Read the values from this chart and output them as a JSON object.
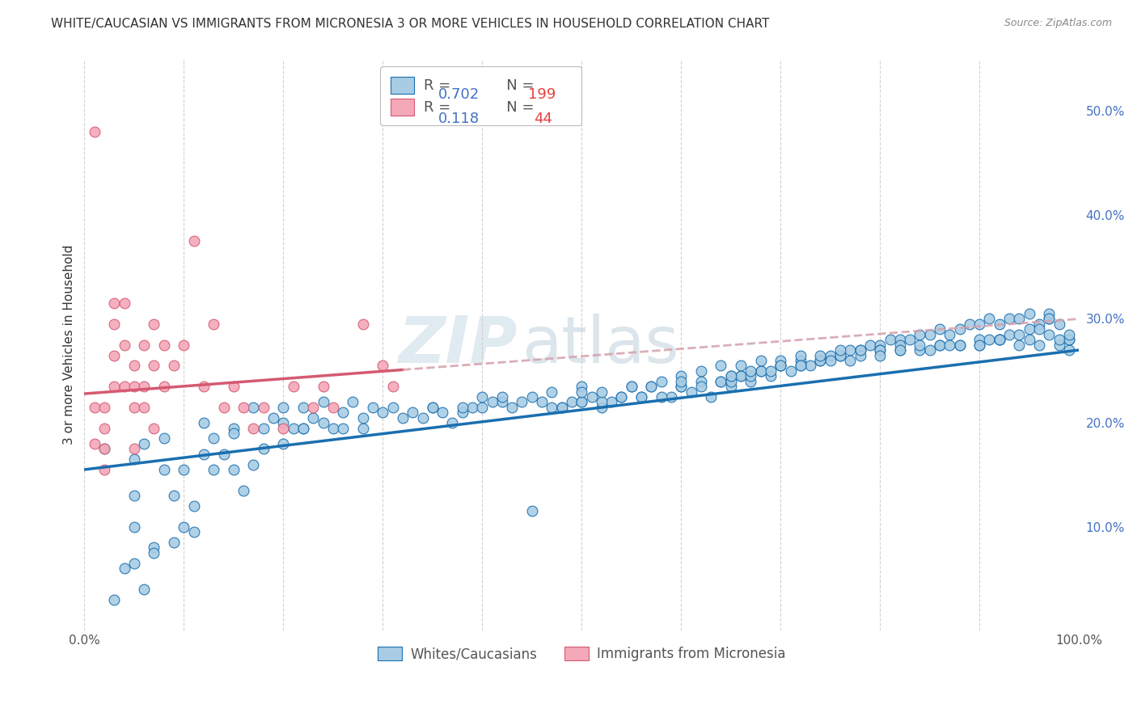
{
  "title": "WHITE/CAUCASIAN VS IMMIGRANTS FROM MICRONESIA 3 OR MORE VEHICLES IN HOUSEHOLD CORRELATION CHART",
  "source": "Source: ZipAtlas.com",
  "ylabel": "3 or more Vehicles in Household",
  "xlim": [
    0,
    1.0
  ],
  "ylim": [
    0,
    0.55
  ],
  "blue_R": 0.702,
  "blue_N": 199,
  "pink_R": 0.118,
  "pink_N": 44,
  "blue_color": "#a8cce4",
  "pink_color": "#f4a8b8",
  "blue_line_color": "#1a6faf",
  "pink_line_color": "#d45a72",
  "pink_dash_color": "#d4a0ac",
  "legend_blue_label": "Whites/Caucasians",
  "legend_pink_label": "Immigrants from Micronesia",
  "blue_intercept": 0.155,
  "blue_slope": 0.115,
  "pink_intercept": 0.228,
  "pink_slope": 0.072,
  "blue_scatter_x": [
    0.02,
    0.03,
    0.04,
    0.05,
    0.05,
    0.05,
    0.06,
    0.06,
    0.07,
    0.08,
    0.08,
    0.09,
    0.1,
    0.1,
    0.11,
    0.12,
    0.12,
    0.13,
    0.14,
    0.15,
    0.15,
    0.16,
    0.17,
    0.17,
    0.18,
    0.19,
    0.2,
    0.2,
    0.21,
    0.22,
    0.22,
    0.23,
    0.24,
    0.25,
    0.26,
    0.27,
    0.28,
    0.29,
    0.3,
    0.31,
    0.32,
    0.33,
    0.34,
    0.35,
    0.36,
    0.37,
    0.38,
    0.39,
    0.4,
    0.41,
    0.42,
    0.43,
    0.44,
    0.45,
    0.46,
    0.47,
    0.48,
    0.49,
    0.5,
    0.5,
    0.51,
    0.52,
    0.53,
    0.54,
    0.55,
    0.56,
    0.57,
    0.58,
    0.59,
    0.6,
    0.61,
    0.62,
    0.63,
    0.64,
    0.65,
    0.65,
    0.66,
    0.67,
    0.68,
    0.69,
    0.7,
    0.71,
    0.72,
    0.73,
    0.74,
    0.75,
    0.76,
    0.77,
    0.78,
    0.79,
    0.8,
    0.81,
    0.82,
    0.83,
    0.84,
    0.85,
    0.86,
    0.87,
    0.88,
    0.89,
    0.9,
    0.91,
    0.92,
    0.93,
    0.94,
    0.95,
    0.96,
    0.97,
    0.97,
    0.98,
    0.99,
    0.99,
    0.13,
    0.15,
    0.18,
    0.2,
    0.22,
    0.24,
    0.26,
    0.28,
    0.48,
    0.5,
    0.52,
    0.54,
    0.56,
    0.58,
    0.6,
    0.62,
    0.64,
    0.65,
    0.66,
    0.67,
    0.68,
    0.69,
    0.7,
    0.72,
    0.74,
    0.76,
    0.78,
    0.8,
    0.82,
    0.84,
    0.86,
    0.88,
    0.9,
    0.92,
    0.94,
    0.96,
    0.98,
    0.05,
    0.07,
    0.09,
    0.11,
    0.6,
    0.62,
    0.64,
    0.66,
    0.68,
    0.7,
    0.72,
    0.74,
    0.76,
    0.78,
    0.8,
    0.82,
    0.84,
    0.86,
    0.88,
    0.9,
    0.91,
    0.92,
    0.93,
    0.94,
    0.95,
    0.96,
    0.97,
    0.98,
    0.99,
    0.65,
    0.67,
    0.7,
    0.72,
    0.75,
    0.77,
    0.8,
    0.82,
    0.85,
    0.87,
    0.9,
    0.92,
    0.95,
    0.97,
    0.99,
    0.35,
    0.38,
    0.4,
    0.42,
    0.45,
    0.47,
    0.5,
    0.52,
    0.55,
    0.57,
    0.6
  ],
  "blue_scatter_y": [
    0.175,
    0.03,
    0.06,
    0.1,
    0.13,
    0.165,
    0.04,
    0.18,
    0.08,
    0.155,
    0.185,
    0.13,
    0.1,
    0.155,
    0.12,
    0.17,
    0.2,
    0.155,
    0.17,
    0.155,
    0.195,
    0.135,
    0.16,
    0.215,
    0.175,
    0.205,
    0.215,
    0.18,
    0.195,
    0.195,
    0.215,
    0.205,
    0.22,
    0.195,
    0.21,
    0.22,
    0.195,
    0.215,
    0.21,
    0.215,
    0.205,
    0.21,
    0.205,
    0.215,
    0.21,
    0.2,
    0.21,
    0.215,
    0.215,
    0.22,
    0.22,
    0.215,
    0.22,
    0.115,
    0.22,
    0.215,
    0.215,
    0.22,
    0.235,
    0.22,
    0.225,
    0.215,
    0.22,
    0.225,
    0.235,
    0.225,
    0.235,
    0.24,
    0.225,
    0.235,
    0.23,
    0.24,
    0.225,
    0.24,
    0.235,
    0.245,
    0.245,
    0.24,
    0.25,
    0.245,
    0.255,
    0.25,
    0.26,
    0.255,
    0.26,
    0.265,
    0.265,
    0.27,
    0.27,
    0.275,
    0.275,
    0.28,
    0.28,
    0.28,
    0.285,
    0.285,
    0.29,
    0.285,
    0.29,
    0.295,
    0.295,
    0.3,
    0.295,
    0.3,
    0.3,
    0.305,
    0.295,
    0.3,
    0.305,
    0.275,
    0.27,
    0.28,
    0.185,
    0.19,
    0.195,
    0.2,
    0.195,
    0.2,
    0.195,
    0.205,
    0.215,
    0.22,
    0.22,
    0.225,
    0.225,
    0.225,
    0.235,
    0.235,
    0.24,
    0.24,
    0.245,
    0.245,
    0.25,
    0.25,
    0.255,
    0.255,
    0.26,
    0.265,
    0.265,
    0.27,
    0.27,
    0.27,
    0.275,
    0.275,
    0.275,
    0.28,
    0.275,
    0.275,
    0.28,
    0.065,
    0.075,
    0.085,
    0.095,
    0.245,
    0.25,
    0.255,
    0.255,
    0.26,
    0.26,
    0.265,
    0.265,
    0.27,
    0.27,
    0.27,
    0.275,
    0.275,
    0.275,
    0.275,
    0.28,
    0.28,
    0.28,
    0.285,
    0.285,
    0.29,
    0.29,
    0.3,
    0.295,
    0.28,
    0.245,
    0.25,
    0.255,
    0.255,
    0.26,
    0.26,
    0.265,
    0.27,
    0.27,
    0.275,
    0.275,
    0.28,
    0.28,
    0.285,
    0.285,
    0.215,
    0.215,
    0.225,
    0.225,
    0.225,
    0.23,
    0.23,
    0.23,
    0.235,
    0.235,
    0.24
  ],
  "pink_scatter_x": [
    0.01,
    0.01,
    0.01,
    0.02,
    0.02,
    0.02,
    0.02,
    0.03,
    0.03,
    0.03,
    0.03,
    0.04,
    0.04,
    0.04,
    0.05,
    0.05,
    0.05,
    0.06,
    0.06,
    0.07,
    0.07,
    0.08,
    0.08,
    0.09,
    0.1,
    0.11,
    0.12,
    0.13,
    0.14,
    0.15,
    0.16,
    0.17,
    0.18,
    0.2,
    0.21,
    0.23,
    0.24,
    0.25,
    0.28,
    0.3,
    0.31,
    0.05,
    0.06,
    0.07
  ],
  "pink_scatter_y": [
    0.48,
    0.215,
    0.18,
    0.215,
    0.195,
    0.175,
    0.155,
    0.315,
    0.295,
    0.265,
    0.235,
    0.315,
    0.275,
    0.235,
    0.255,
    0.235,
    0.215,
    0.275,
    0.235,
    0.295,
    0.255,
    0.275,
    0.235,
    0.255,
    0.275,
    0.375,
    0.235,
    0.295,
    0.215,
    0.235,
    0.215,
    0.195,
    0.215,
    0.195,
    0.235,
    0.215,
    0.235,
    0.215,
    0.295,
    0.255,
    0.235,
    0.175,
    0.215,
    0.195
  ]
}
